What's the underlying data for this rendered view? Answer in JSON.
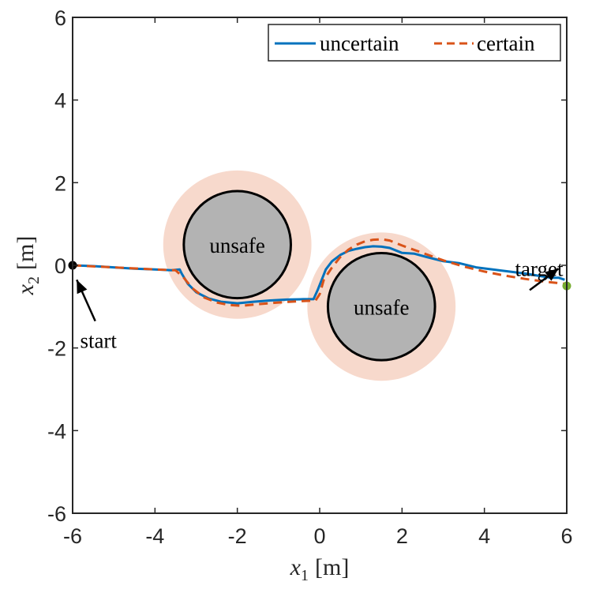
{
  "chart_data": {
    "type": "line",
    "xlabel": {
      "var": "x",
      "sub": "1",
      "unit": "[m]"
    },
    "ylabel": {
      "var": "x",
      "sub": "2",
      "unit": "[m]"
    },
    "xlim": [
      -6,
      6
    ],
    "ylim": [
      -6,
      6
    ],
    "xticks": [
      "-6",
      "-4",
      "-2",
      "0",
      "2",
      "4",
      "6"
    ],
    "yticks": [
      "-6",
      "-4",
      "-2",
      "0",
      "2",
      "4",
      "6"
    ],
    "xtick_values": [
      -6,
      -4,
      -2,
      0,
      2,
      4,
      6
    ],
    "ytick_values": [
      -6,
      -4,
      -2,
      0,
      2,
      4,
      6
    ],
    "grid": false,
    "legend_position": "top-right",
    "series": [
      {
        "name": "uncertain",
        "style": "solid",
        "color": "#0072BD",
        "x": [
          -6,
          -5.5,
          -5,
          -4.5,
          -4,
          -3.6,
          -3.4,
          -3.35,
          -3.2,
          -3.0,
          -2.7,
          -2.4,
          -2.0,
          -1.6,
          -1.2,
          -0.8,
          -0.4,
          -0.15,
          -0.05,
          0.05,
          0.15,
          0.3,
          0.5,
          0.7,
          0.9,
          1.1,
          1.3,
          1.5,
          1.7,
          2.0,
          2.3,
          2.6,
          3.0,
          3.4,
          3.8,
          4.2,
          4.6,
          5.0,
          5.3,
          5.6,
          5.8,
          5.95
        ],
        "y": [
          0,
          -0.02,
          -0.05,
          -0.08,
          -0.1,
          -0.12,
          -0.1,
          -0.2,
          -0.45,
          -0.65,
          -0.8,
          -0.88,
          -0.92,
          -0.88,
          -0.85,
          -0.83,
          -0.82,
          -0.82,
          -0.6,
          -0.35,
          -0.1,
          0.1,
          0.25,
          0.35,
          0.4,
          0.44,
          0.46,
          0.45,
          0.42,
          0.3,
          0.28,
          0.2,
          0.1,
          0.05,
          -0.05,
          -0.1,
          -0.15,
          -0.2,
          -0.25,
          -0.3,
          -0.3,
          -0.35
        ]
      },
      {
        "name": "certain",
        "style": "dashed",
        "color": "#D95319",
        "x": [
          -6,
          -5,
          -4,
          -3.5,
          -3.3,
          -3.1,
          -2.8,
          -2.5,
          -2.2,
          -1.9,
          -1.5,
          -1.0,
          -0.5,
          -0.1,
          0.0,
          0.1,
          0.3,
          0.5,
          0.7,
          0.9,
          1.1,
          1.3,
          1.5,
          1.7,
          2.0,
          2.5,
          3.0,
          3.5,
          4.0,
          4.5,
          5.0,
          5.5,
          6.0
        ],
        "y": [
          0,
          -0.05,
          -0.1,
          -0.12,
          -0.3,
          -0.55,
          -0.78,
          -0.9,
          -0.96,
          -0.98,
          -0.94,
          -0.9,
          -0.87,
          -0.85,
          -0.7,
          -0.35,
          -0.05,
          0.2,
          0.38,
          0.5,
          0.58,
          0.62,
          0.63,
          0.6,
          0.48,
          0.3,
          0.12,
          -0.03,
          -0.15,
          -0.25,
          -0.33,
          -0.4,
          -0.45
        ]
      }
    ],
    "obstacles": [
      {
        "label": "unsafe",
        "center": [
          -2,
          0.5
        ],
        "radius": 1.3,
        "margin_radius": 1.8,
        "fill": "#B3B3B3",
        "margin_fill": "#F7D9CC"
      },
      {
        "label": "unsafe",
        "center": [
          1.5,
          -1
        ],
        "radius": 1.3,
        "margin_radius": 1.8,
        "fill": "#B3B3B3",
        "margin_fill": "#F7D9CC"
      }
    ],
    "markers": [
      {
        "name": "start-point",
        "x": -6,
        "y": 0,
        "color": "#000000"
      },
      {
        "name": "target-point",
        "x": 6,
        "y": -0.5,
        "color": "#77AC30"
      }
    ],
    "annotations": [
      {
        "name": "start",
        "text": "start",
        "arrow_from": [
          -5.45,
          -1.35
        ],
        "arrow_to": [
          -5.9,
          -0.35
        ]
      },
      {
        "name": "target",
        "text": "target",
        "arrow_from": [
          5.1,
          -0.6
        ],
        "arrow_to": [
          5.8,
          -0.08
        ]
      }
    ]
  }
}
